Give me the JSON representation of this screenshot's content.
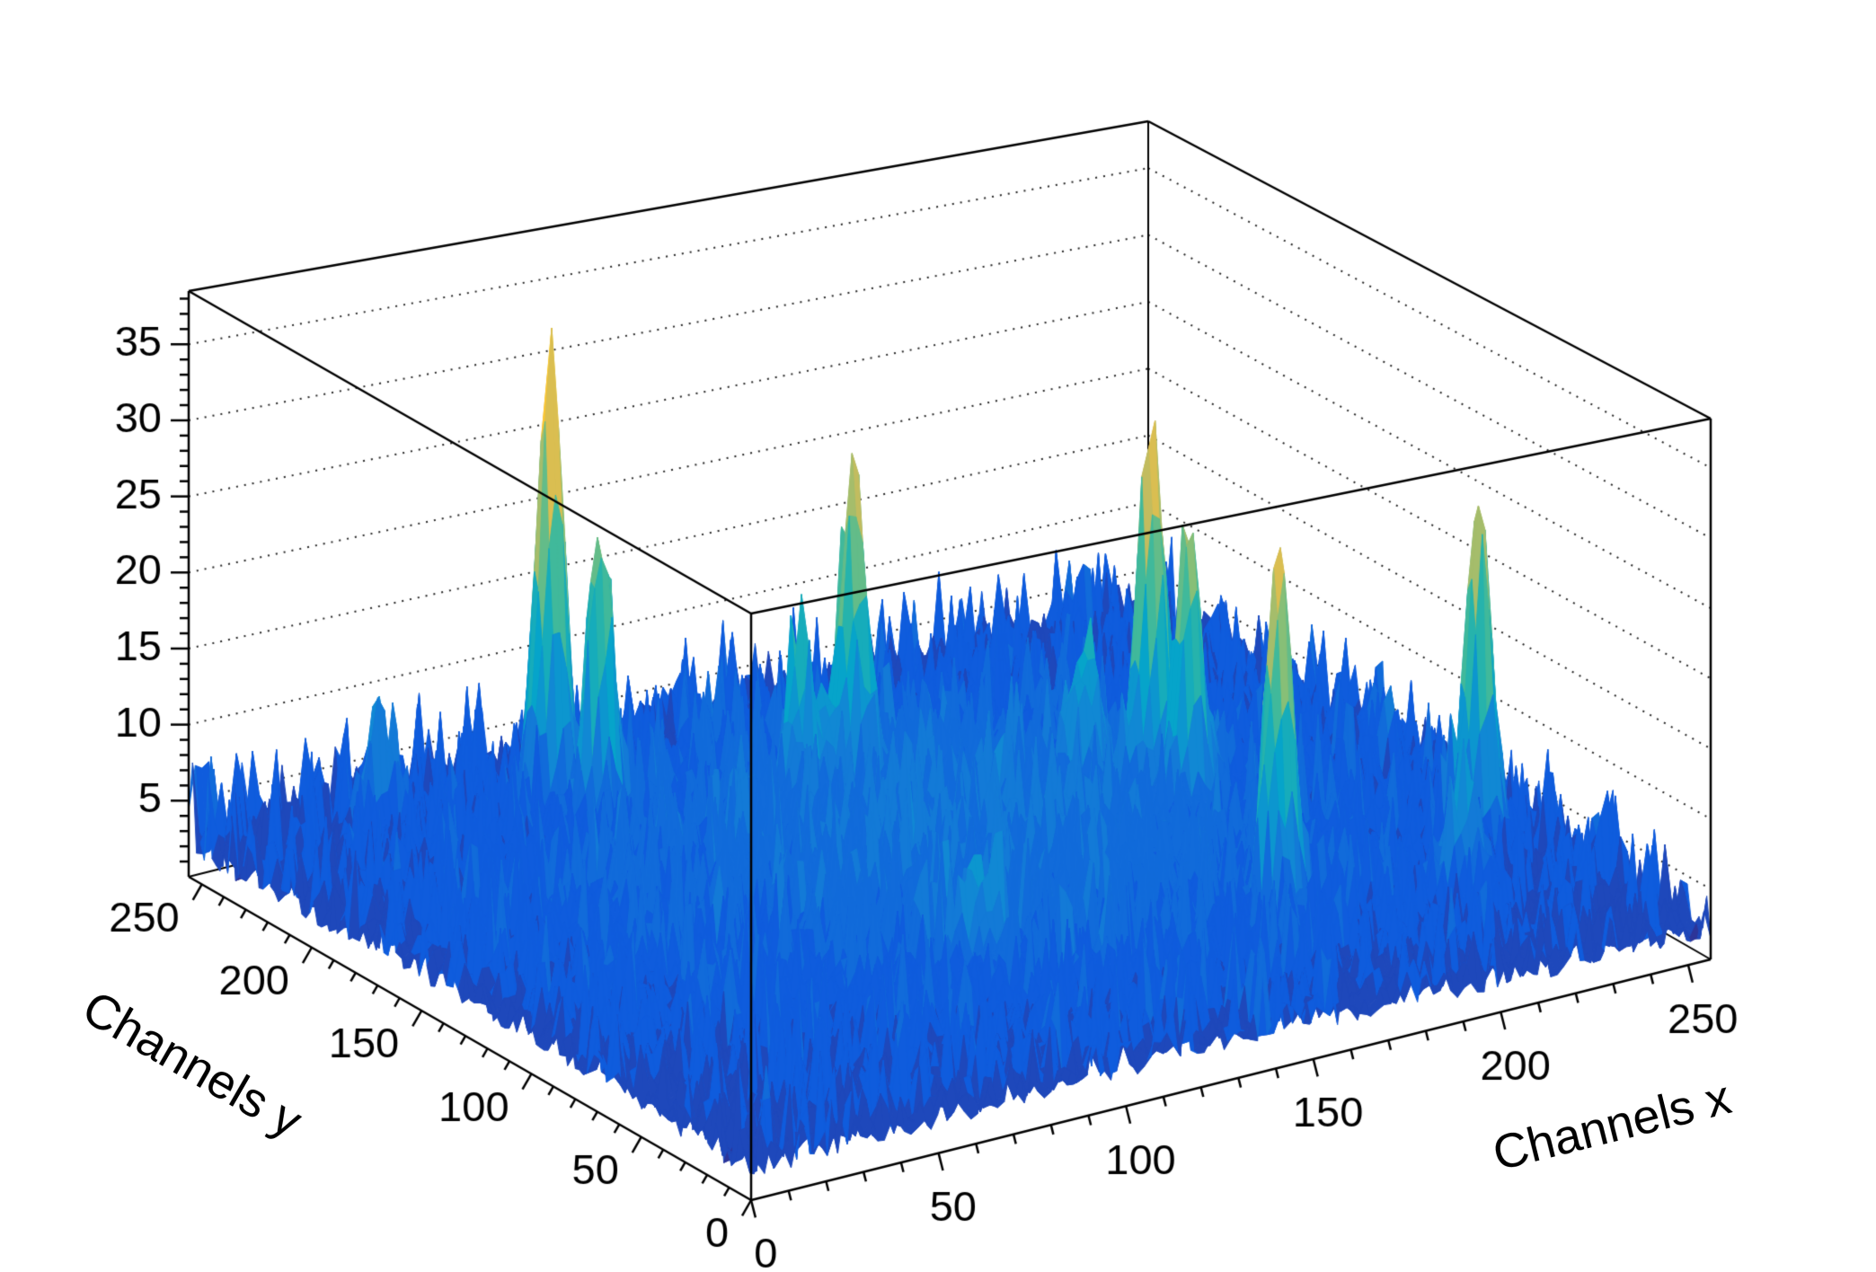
{
  "chart_data": {
    "type": "surface3d",
    "title": "",
    "xlabel": "Channels x",
    "ylabel": "Channels y",
    "zlabel": "",
    "x_range": [
      0,
      256
    ],
    "y_range": [
      0,
      256
    ],
    "z_range": [
      0,
      38.5
    ],
    "x_ticks": [
      0,
      50,
      100,
      150,
      200,
      250
    ],
    "y_ticks": [
      0,
      50,
      100,
      150,
      200,
      250
    ],
    "z_ticks": [
      5,
      10,
      15,
      20,
      25,
      30,
      35
    ],
    "grid": true,
    "legend": false,
    "palette": [
      "#352A87",
      "#0F5CDD",
      "#1481D6",
      "#06A4CA",
      "#2EB7A4",
      "#87BF77",
      "#D1BB59",
      "#FEC832",
      "#F9FB0E"
    ],
    "contour_levels": 20,
    "z_color_max": 36,
    "resolution": 144,
    "baseline": {
      "offset": 1.2,
      "noise_mean": 1.5,
      "noise_cap": 7,
      "broad_hump": {
        "x": 128,
        "y": 128,
        "sigma": 70,
        "amp": 4.2
      }
    },
    "peaks": [
      {
        "x": 73,
        "y": 216,
        "amp": 31,
        "sigma": 3.2
      },
      {
        "x": 75,
        "y": 197,
        "amp": 20,
        "sigma": 3.0
      },
      {
        "x": 128,
        "y": 172,
        "amp": 21,
        "sigma": 3.2
      },
      {
        "x": 116,
        "y": 174,
        "amp": 9,
        "sigma": 3.5
      },
      {
        "x": 174,
        "y": 146,
        "amp": 9,
        "sigma": 3.5
      },
      {
        "x": 184,
        "y": 132,
        "amp": 26,
        "sigma": 3.2
      },
      {
        "x": 186,
        "y": 118,
        "amp": 20,
        "sigma": 3.0
      },
      {
        "x": 172,
        "y": 53,
        "amp": 26,
        "sigma": 3.2
      },
      {
        "x": 235,
        "y": 70,
        "amp": 25,
        "sigma": 3.2
      },
      {
        "x": 36,
        "y": 231,
        "amp": 7,
        "sigma": 4.0
      },
      {
        "x": 216,
        "y": 44,
        "amp": 9,
        "sigma": 4.0
      },
      {
        "x": 97,
        "y": 60,
        "amp": 6,
        "sigma": 4.0
      }
    ]
  }
}
